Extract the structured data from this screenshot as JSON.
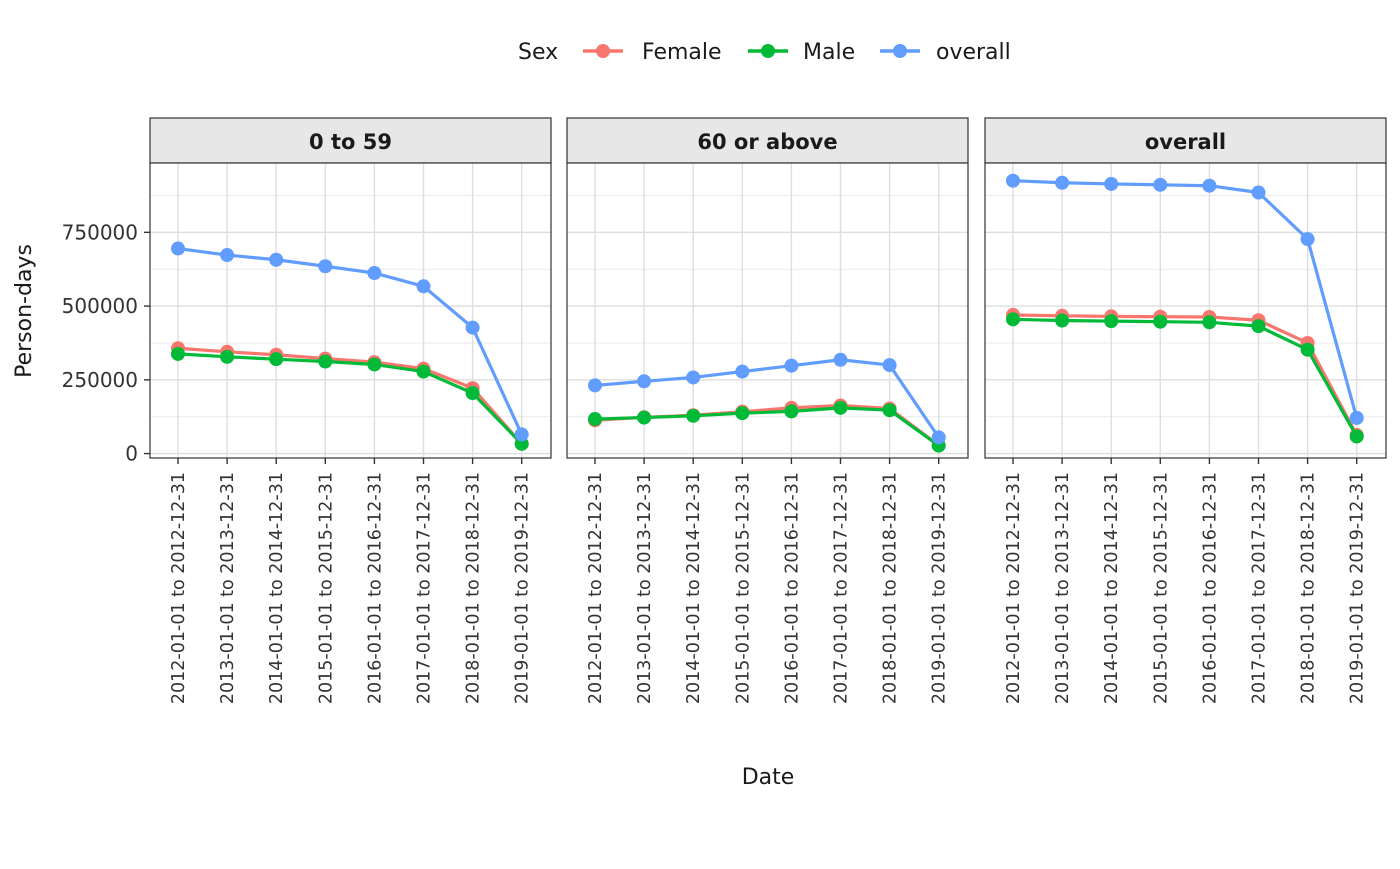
{
  "chart_data": {
    "type": "line",
    "xlabel": "Date",
    "ylabel": "Person-days",
    "legend": {
      "title": "Sex",
      "placement": "top"
    },
    "grid": true,
    "ylim": [
      -15000,
      985000
    ],
    "yticks": [
      0,
      250000,
      500000,
      750000
    ],
    "yticklabels": [
      "0",
      "250000",
      "500000",
      "750000"
    ],
    "categories": [
      "2012-01-01 to 2012-12-31",
      "2013-01-01 to 2013-12-31",
      "2014-01-01 to 2014-12-31",
      "2015-01-01 to 2015-12-31",
      "2016-01-01 to 2016-12-31",
      "2017-01-01 to 2017-12-31",
      "2018-01-01 to 2018-12-31",
      "2019-01-01 to 2019-12-31"
    ],
    "series_styles": [
      {
        "name": "Female",
        "color": "#F8766D"
      },
      {
        "name": "Male",
        "color": "#00BA38"
      },
      {
        "name": "overall",
        "color": "#619CFF"
      }
    ],
    "panels": [
      {
        "title": "0 to 59",
        "series": [
          {
            "name": "Female",
            "values": [
              357000,
              345000,
              335000,
              322000,
              310000,
              288000,
              222000,
              33000
            ]
          },
          {
            "name": "Male",
            "values": [
              338000,
              328000,
              320000,
              312000,
              302000,
              278000,
              205000,
              33000
            ]
          },
          {
            "name": "overall",
            "values": [
              695000,
              673000,
              657000,
              635000,
              612000,
              567000,
              427000,
              65000
            ]
          }
        ]
      },
      {
        "title": "60 or above",
        "series": [
          {
            "name": "Female",
            "values": [
              113000,
              123000,
              130000,
              142000,
              155000,
              163000,
              153000,
              28000
            ]
          },
          {
            "name": "Male",
            "values": [
              117000,
              122000,
              128000,
              137000,
              143000,
              155000,
              147000,
              27000
            ]
          },
          {
            "name": "overall",
            "values": [
              231000,
              245000,
              258000,
              278000,
              298000,
              318000,
              300000,
              55000
            ]
          }
        ]
      },
      {
        "title": "overall",
        "series": [
          {
            "name": "Female",
            "values": [
              470000,
              467000,
              465000,
              464000,
              463000,
              452000,
              375000,
              63000
            ]
          },
          {
            "name": "Male",
            "values": [
              455000,
              451000,
              449000,
              447000,
              445000,
              432000,
              352000,
              58000
            ]
          },
          {
            "name": "overall",
            "values": [
              925000,
              918000,
              914000,
              911000,
              908000,
              885000,
              727000,
              121000
            ]
          }
        ]
      }
    ]
  }
}
